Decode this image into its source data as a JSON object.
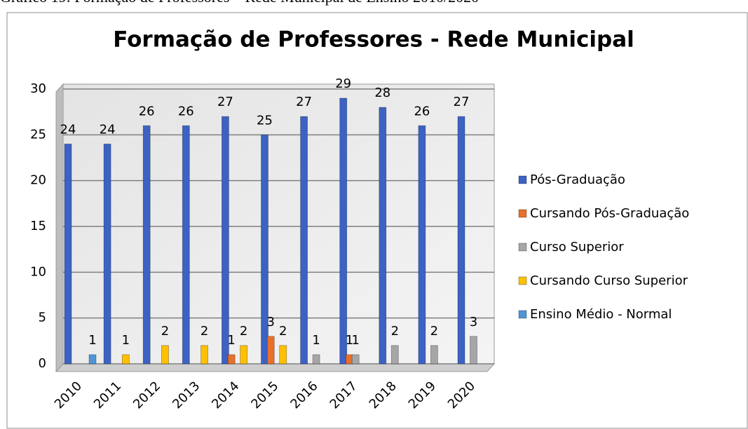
{
  "caption": "Gráfico 19: Formação de Professores – Rede Municipal de Ensino 2010/2020",
  "chart_data": {
    "type": "bar",
    "title": "Formação de Professores - Rede Municipal",
    "categories": [
      "2010",
      "2011",
      "2012",
      "2013",
      "2014",
      "2015",
      "2016",
      "2017",
      "2018",
      "2019",
      "2020"
    ],
    "series": [
      {
        "name": "Pós-Graduação",
        "color": "#3c62c4",
        "values": [
          24,
          24,
          26,
          26,
          27,
          25,
          27,
          29,
          28,
          26,
          27
        ]
      },
      {
        "name": "Cursando Pós-Graduação",
        "color": "#e8702a",
        "values": [
          null,
          null,
          null,
          null,
          1,
          3,
          null,
          1,
          null,
          null,
          null
        ]
      },
      {
        "name": "Curso Superior",
        "color": "#a6a6a6",
        "values": [
          null,
          null,
          null,
          null,
          null,
          null,
          1,
          1,
          2,
          2,
          3
        ]
      },
      {
        "name": "Cursando Curso Superior",
        "color": "#ffc000",
        "values": [
          null,
          1,
          2,
          2,
          2,
          2,
          null,
          null,
          null,
          null,
          null
        ]
      },
      {
        "name": "Ensino Médio - Normal",
        "color": "#4f95d6",
        "values": [
          1,
          null,
          null,
          null,
          null,
          null,
          null,
          null,
          null,
          null,
          null
        ]
      }
    ],
    "ylim": [
      0,
      30
    ],
    "yticks": [
      0,
      5,
      10,
      15,
      20,
      25,
      30
    ],
    "grid": true,
    "legend": "right"
  }
}
